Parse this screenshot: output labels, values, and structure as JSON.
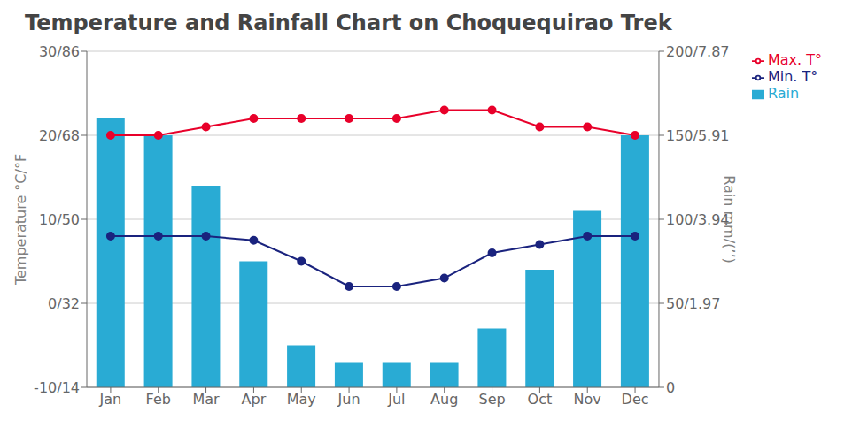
{
  "chart_data": {
    "type": "bar",
    "title": "Temperature and Rainfall Chart on Choquequirao Trek",
    "ylabel": "Temperature °C/°F",
    "y2label": "Rain mm/(’’)",
    "categories": [
      "Jan",
      "Feb",
      "Mar",
      "Apr",
      "May",
      "Jun",
      "Jul",
      "Aug",
      "Sep",
      "Oct",
      "Nov",
      "Dec"
    ],
    "series": [
      {
        "name": "Rain",
        "type": "bar",
        "axis": "y2",
        "color": "#29ABD4",
        "values": [
          160,
          150,
          120,
          75,
          25,
          15,
          15,
          15,
          35,
          70,
          105,
          150
        ]
      },
      {
        "name": "Max. T°",
        "type": "line",
        "marker": "circle",
        "color": "#E8002A",
        "values": [
          20,
          20,
          21,
          22,
          22,
          22,
          22,
          23,
          23,
          21,
          21,
          20
        ]
      },
      {
        "name": "Min. T°",
        "type": "line",
        "marker": "circle",
        "color": "#1A237E",
        "values": [
          8,
          8,
          8,
          7.5,
          5,
          2,
          2,
          3,
          6,
          7,
          8,
          8
        ]
      }
    ],
    "ylim": [
      -10,
      30
    ],
    "yticks": [
      {
        "value": -10,
        "label": "-10/14"
      },
      {
        "value": 0,
        "label": "0/32"
      },
      {
        "value": 10,
        "label": "10/50"
      },
      {
        "value": 20,
        "label": "20/68"
      },
      {
        "value": 30,
        "label": "30/86"
      }
    ],
    "y2lim": [
      0,
      200
    ],
    "y2ticks": [
      0,
      {
        "value": 50,
        "label": "50/1.97"
      },
      {
        "value": 100,
        "label": "100/3.94"
      },
      {
        "value": 150,
        "label": "150/5.91"
      },
      {
        "value": 200,
        "label": "200/7.87"
      }
    ],
    "grid": true,
    "legend": "upper right"
  }
}
